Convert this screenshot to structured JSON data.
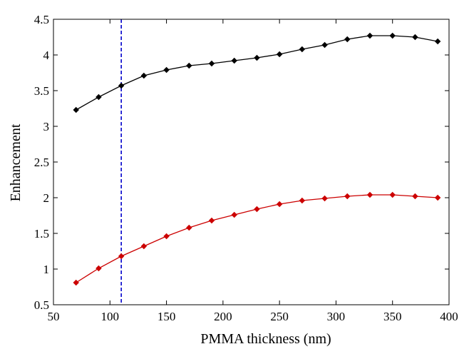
{
  "chart_data": {
    "type": "line",
    "title": "",
    "xlabel": "PMMA thickness (nm)",
    "ylabel": "Enhancement",
    "xlim": [
      50,
      400
    ],
    "ylim": [
      0.5,
      4.5
    ],
    "xticks": [
      50,
      100,
      150,
      200,
      250,
      300,
      350,
      400
    ],
    "xtick_labels": [
      "50",
      "100",
      "150",
      "200",
      "250",
      "300",
      "350",
      "400"
    ],
    "yticks": [
      0.5,
      1,
      1.5,
      2,
      2.5,
      3,
      3.5,
      4,
      4.5
    ],
    "ytick_labels": [
      "0.5",
      "1",
      "1.5",
      "2",
      "2.5",
      "3",
      "3.5",
      "4",
      "4.5"
    ],
    "grid": false,
    "legend": "none",
    "x": [
      70,
      90,
      110,
      130,
      150,
      170,
      190,
      210,
      230,
      250,
      270,
      290,
      310,
      330,
      350,
      370,
      390
    ],
    "series": [
      {
        "color": "#000000",
        "marker": "diamond",
        "values": [
          3.23,
          3.41,
          3.57,
          3.71,
          3.79,
          3.85,
          3.88,
          3.92,
          3.96,
          4.01,
          4.08,
          4.14,
          4.22,
          4.27,
          4.27,
          4.25,
          4.19
        ]
      },
      {
        "color": "#cc0000",
        "marker": "diamond",
        "values": [
          0.81,
          1.01,
          1.18,
          1.32,
          1.46,
          1.58,
          1.68,
          1.76,
          1.84,
          1.91,
          1.96,
          1.99,
          2.02,
          2.04,
          2.04,
          2.02,
          2.0
        ]
      }
    ],
    "reference_lines": [
      {
        "orientation": "vertical",
        "x": 110,
        "color": "#0000cc",
        "style": "dashed"
      }
    ]
  }
}
